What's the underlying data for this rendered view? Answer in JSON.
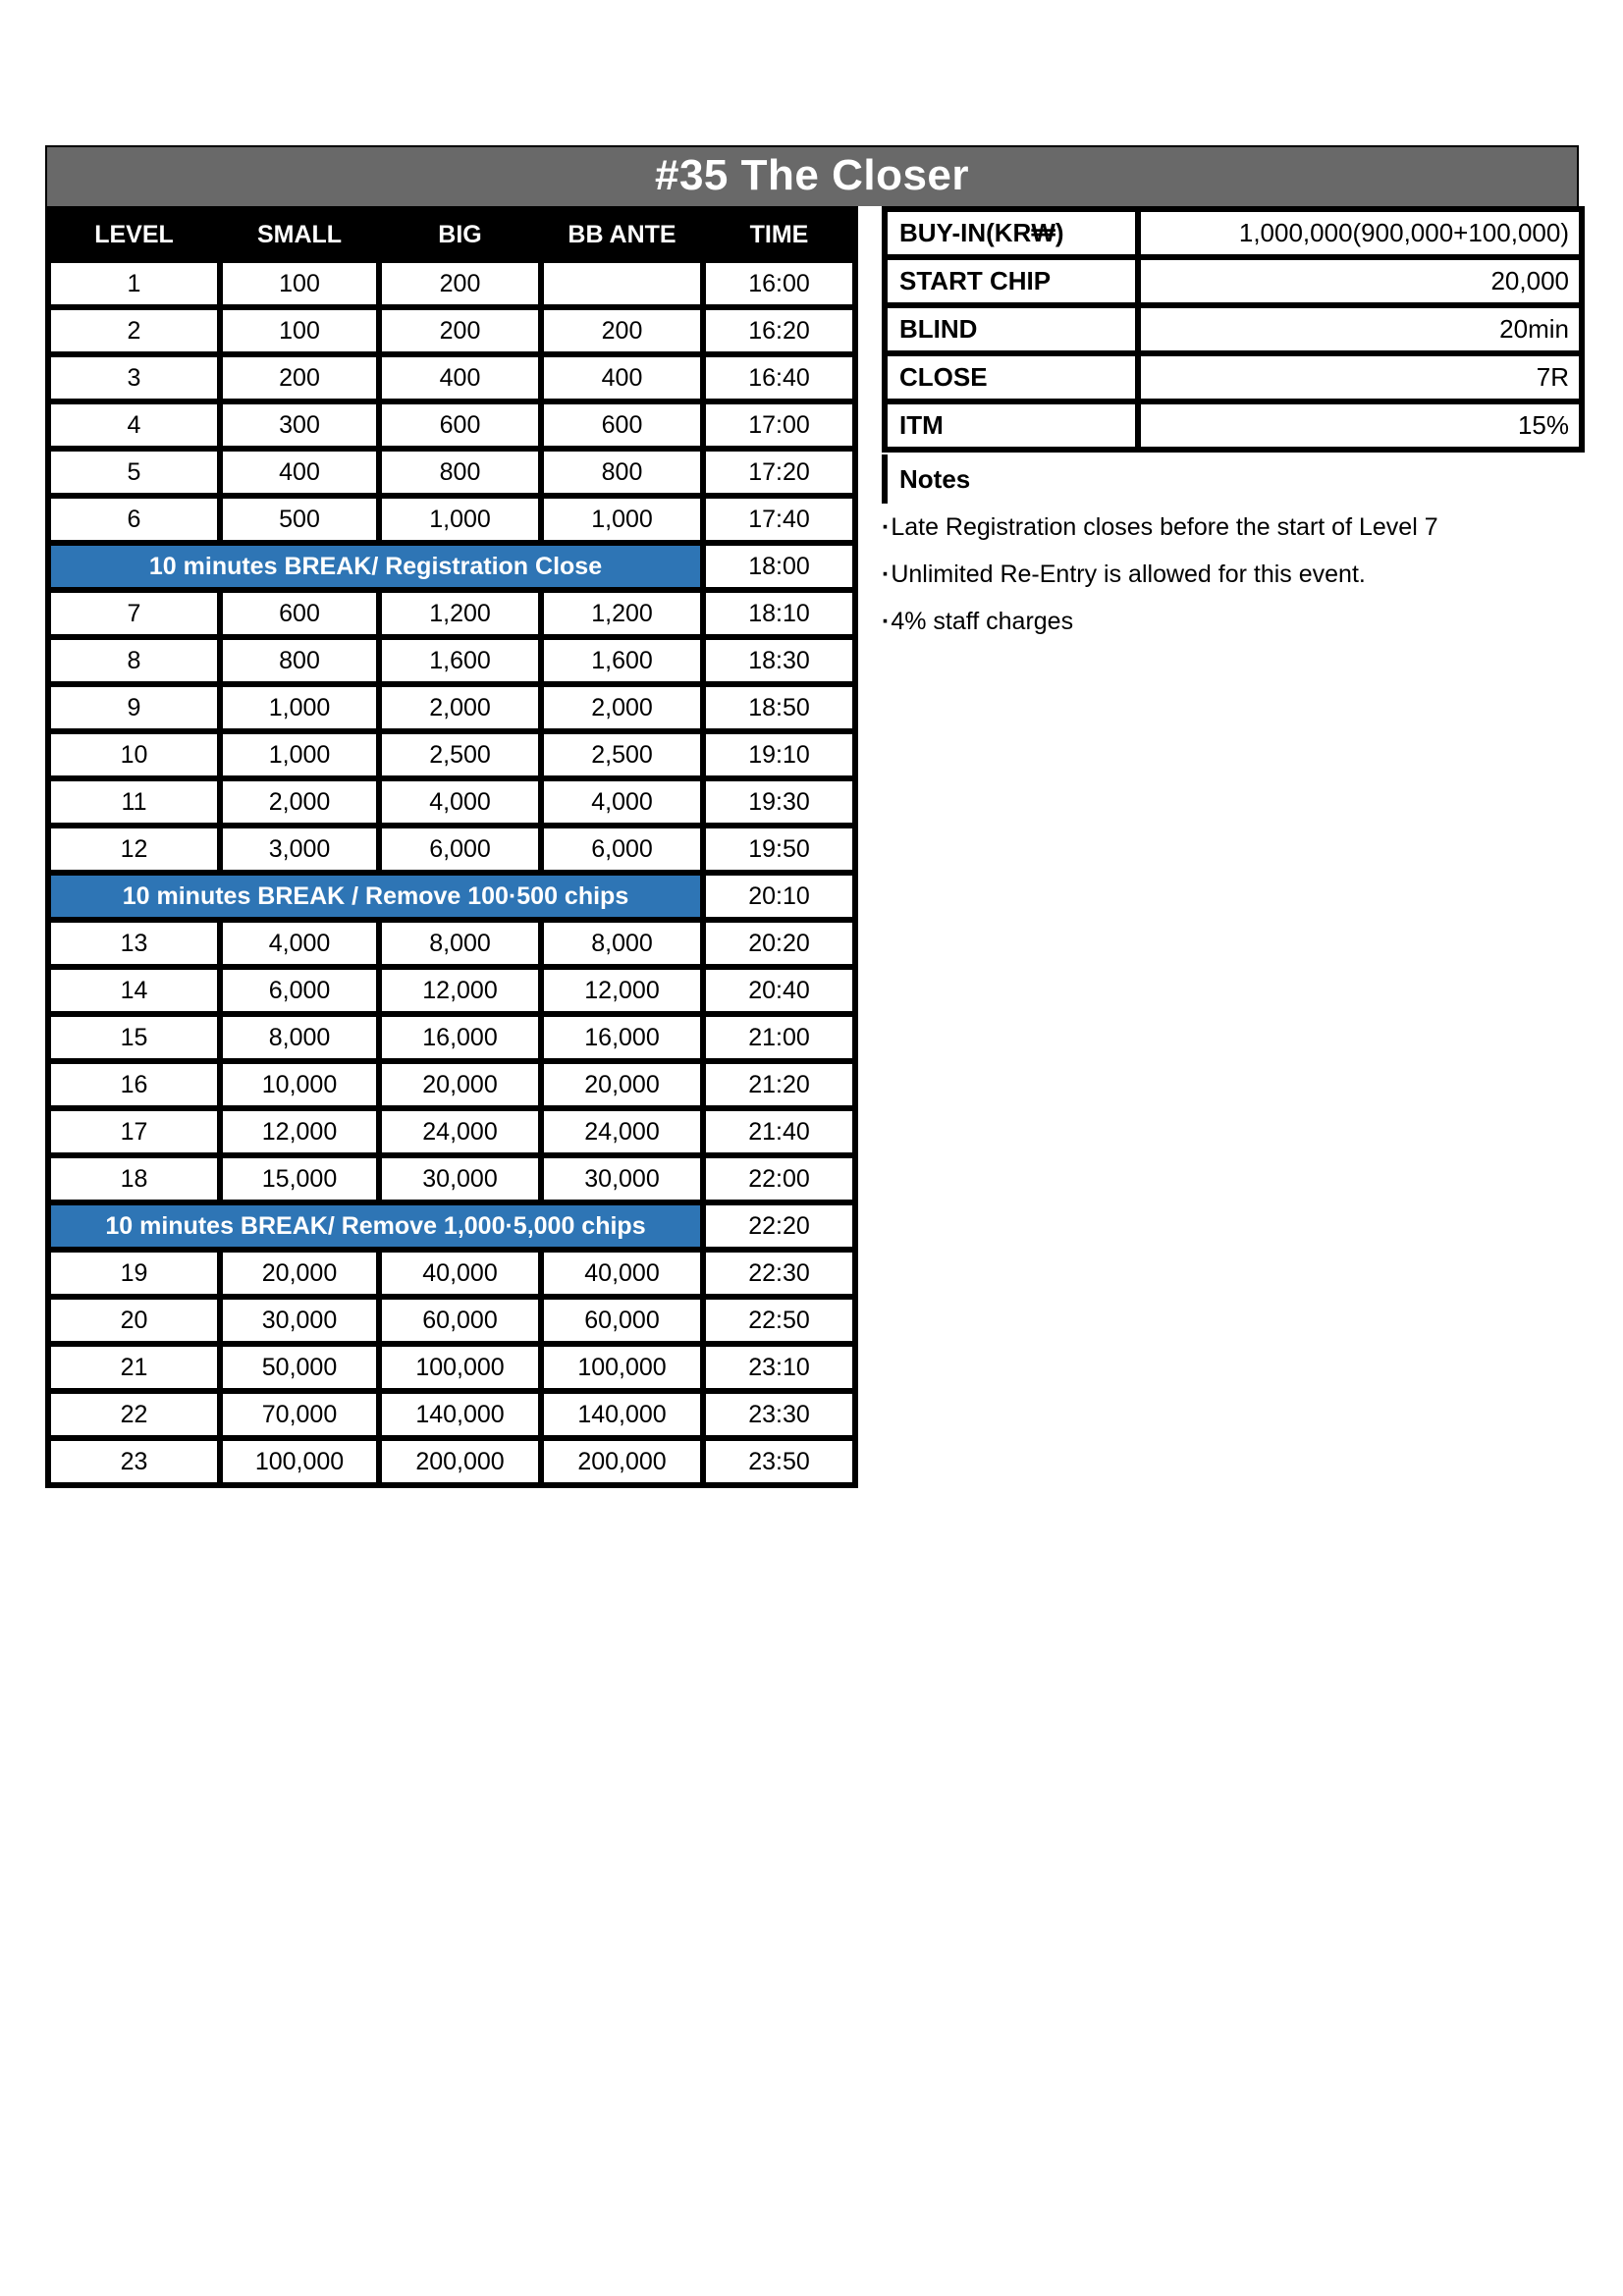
{
  "title": "#35 The Closer",
  "blinds_table": {
    "headers": [
      "LEVEL",
      "SMALL",
      "BIG",
      "BB ANTE",
      "TIME"
    ],
    "rows": [
      {
        "type": "level",
        "level": "1",
        "small": "100",
        "big": "200",
        "bb_ante": "",
        "time": "16:00"
      },
      {
        "type": "level",
        "level": "2",
        "small": "100",
        "big": "200",
        "bb_ante": "200",
        "time": "16:20"
      },
      {
        "type": "level",
        "level": "3",
        "small": "200",
        "big": "400",
        "bb_ante": "400",
        "time": "16:40"
      },
      {
        "type": "level",
        "level": "4",
        "small": "300",
        "big": "600",
        "bb_ante": "600",
        "time": "17:00"
      },
      {
        "type": "level",
        "level": "5",
        "small": "400",
        "big": "800",
        "bb_ante": "800",
        "time": "17:20"
      },
      {
        "type": "level",
        "level": "6",
        "small": "500",
        "big": "1,000",
        "bb_ante": "1,000",
        "time": "17:40"
      },
      {
        "type": "break",
        "label": "10 minutes BREAK/ Registration Close",
        "time": "18:00"
      },
      {
        "type": "level",
        "level": "7",
        "small": "600",
        "big": "1,200",
        "bb_ante": "1,200",
        "time": "18:10"
      },
      {
        "type": "level",
        "level": "8",
        "small": "800",
        "big": "1,600",
        "bb_ante": "1,600",
        "time": "18:30"
      },
      {
        "type": "level",
        "level": "9",
        "small": "1,000",
        "big": "2,000",
        "bb_ante": "2,000",
        "time": "18:50"
      },
      {
        "type": "level",
        "level": "10",
        "small": "1,000",
        "big": "2,500",
        "bb_ante": "2,500",
        "time": "19:10"
      },
      {
        "type": "level",
        "level": "11",
        "small": "2,000",
        "big": "4,000",
        "bb_ante": "4,000",
        "time": "19:30"
      },
      {
        "type": "level",
        "level": "12",
        "small": "3,000",
        "big": "6,000",
        "bb_ante": "6,000",
        "time": "19:50"
      },
      {
        "type": "break",
        "label": "10 minutes BREAK / Remove 100·500 chips",
        "time": "20:10"
      },
      {
        "type": "level",
        "level": "13",
        "small": "4,000",
        "big": "8,000",
        "bb_ante": "8,000",
        "time": "20:20"
      },
      {
        "type": "level",
        "level": "14",
        "small": "6,000",
        "big": "12,000",
        "bb_ante": "12,000",
        "time": "20:40"
      },
      {
        "type": "level",
        "level": "15",
        "small": "8,000",
        "big": "16,000",
        "bb_ante": "16,000",
        "time": "21:00"
      },
      {
        "type": "level",
        "level": "16",
        "small": "10,000",
        "big": "20,000",
        "bb_ante": "20,000",
        "time": "21:20"
      },
      {
        "type": "level",
        "level": "17",
        "small": "12,000",
        "big": "24,000",
        "bb_ante": "24,000",
        "time": "21:40"
      },
      {
        "type": "level",
        "level": "18",
        "small": "15,000",
        "big": "30,000",
        "bb_ante": "30,000",
        "time": "22:00"
      },
      {
        "type": "break",
        "label": "10 minutes BREAK/ Remove 1,000·5,000 chips",
        "time": "22:20"
      },
      {
        "type": "level",
        "level": "19",
        "small": "20,000",
        "big": "40,000",
        "bb_ante": "40,000",
        "time": "22:30"
      },
      {
        "type": "level",
        "level": "20",
        "small": "30,000",
        "big": "60,000",
        "bb_ante": "60,000",
        "time": "22:50"
      },
      {
        "type": "level",
        "level": "21",
        "small": "50,000",
        "big": "100,000",
        "bb_ante": "100,000",
        "time": "23:10"
      },
      {
        "type": "level",
        "level": "22",
        "small": "70,000",
        "big": "140,000",
        "bb_ante": "140,000",
        "time": "23:30"
      },
      {
        "type": "level",
        "level": "23",
        "small": "100,000",
        "big": "200,000",
        "bb_ante": "200,000",
        "time": "23:50"
      }
    ]
  },
  "info_table": {
    "rows": [
      {
        "label": "BUY-IN(KR₩)",
        "value": "1,000,000(900,000+100,000)"
      },
      {
        "label": "START CHIP",
        "value": "20,000"
      },
      {
        "label": "BLIND",
        "value": "20min"
      },
      {
        "label": "CLOSE",
        "value": "7R"
      },
      {
        "label": "ITM",
        "value": "15%"
      }
    ]
  },
  "notes": {
    "title": "Notes",
    "bullet": "·",
    "items": [
      "Late Registration closes before the start of Level 7",
      "Unlimited Re-Entry is allowed for this event.",
      "4% staff charges"
    ]
  },
  "colors": {
    "title_bg": "#696969",
    "header_bg": "#000000",
    "break_bg": "#2E75B5",
    "inverse_text": "#FFFFFF",
    "text": "#000000"
  }
}
